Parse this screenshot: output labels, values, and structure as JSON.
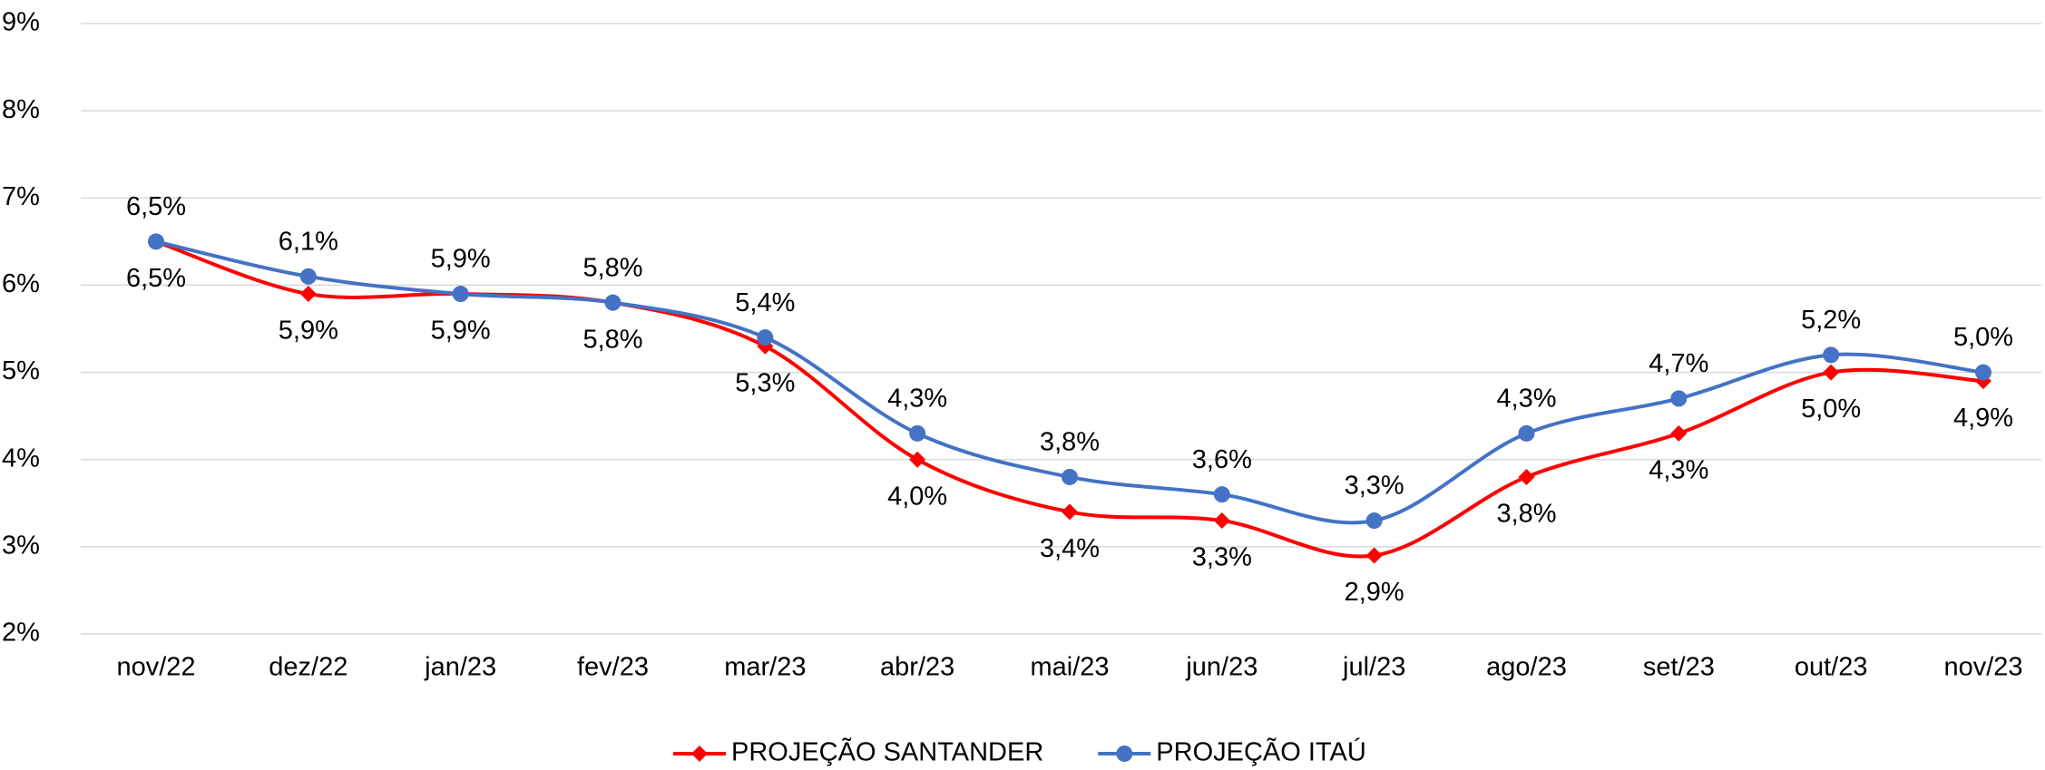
{
  "chart_data": {
    "type": "line",
    "categories": [
      "nov/22",
      "dez/22",
      "jan/23",
      "fev/23",
      "mar/23",
      "abr/23",
      "mai/23",
      "jun/23",
      "jul/23",
      "ago/23",
      "set/23",
      "out/23",
      "nov/23"
    ],
    "series": [
      {
        "name": "PROJEÇÃO SANTANDER",
        "color": "#ff0000",
        "marker": "diamond",
        "values": [
          6.5,
          5.9,
          5.9,
          5.8,
          5.3,
          4.0,
          3.4,
          3.3,
          2.9,
          3.8,
          4.3,
          5.0,
          4.9
        ],
        "value_labels": [
          "6,5%",
          "5,9%",
          "5,9%",
          "5,8%",
          "5,3%",
          "4,0%",
          "3,4%",
          "3,3%",
          "2,9%",
          "3,8%",
          "4,3%",
          "5,0%",
          "4,9%"
        ]
      },
      {
        "name": "PROJEÇÃO ITAÚ",
        "color": "#4472c4",
        "marker": "circle",
        "values": [
          6.5,
          6.1,
          5.9,
          5.8,
          5.4,
          4.3,
          3.8,
          3.6,
          3.3,
          4.3,
          4.7,
          5.2,
          5.0
        ],
        "value_labels": [
          "6,5%",
          "6,1%",
          "5,9%",
          "5,8%",
          "5,4%",
          "4,3%",
          "3,8%",
          "3,6%",
          "3,3%",
          "4,3%",
          "4,7%",
          "5,2%",
          "5,0%"
        ]
      }
    ],
    "ylim": [
      2,
      9
    ],
    "yticks": [
      {
        "value": 2,
        "label": "2%"
      },
      {
        "value": 3,
        "label": "3%"
      },
      {
        "value": 4,
        "label": "4%"
      },
      {
        "value": 5,
        "label": "5%"
      },
      {
        "value": 6,
        "label": "6%"
      },
      {
        "value": 7,
        "label": "7%"
      },
      {
        "value": 8,
        "label": "8%"
      },
      {
        "value": 9,
        "label": "9%"
      }
    ],
    "grid": true,
    "smooth": true,
    "legend": "bottom"
  }
}
